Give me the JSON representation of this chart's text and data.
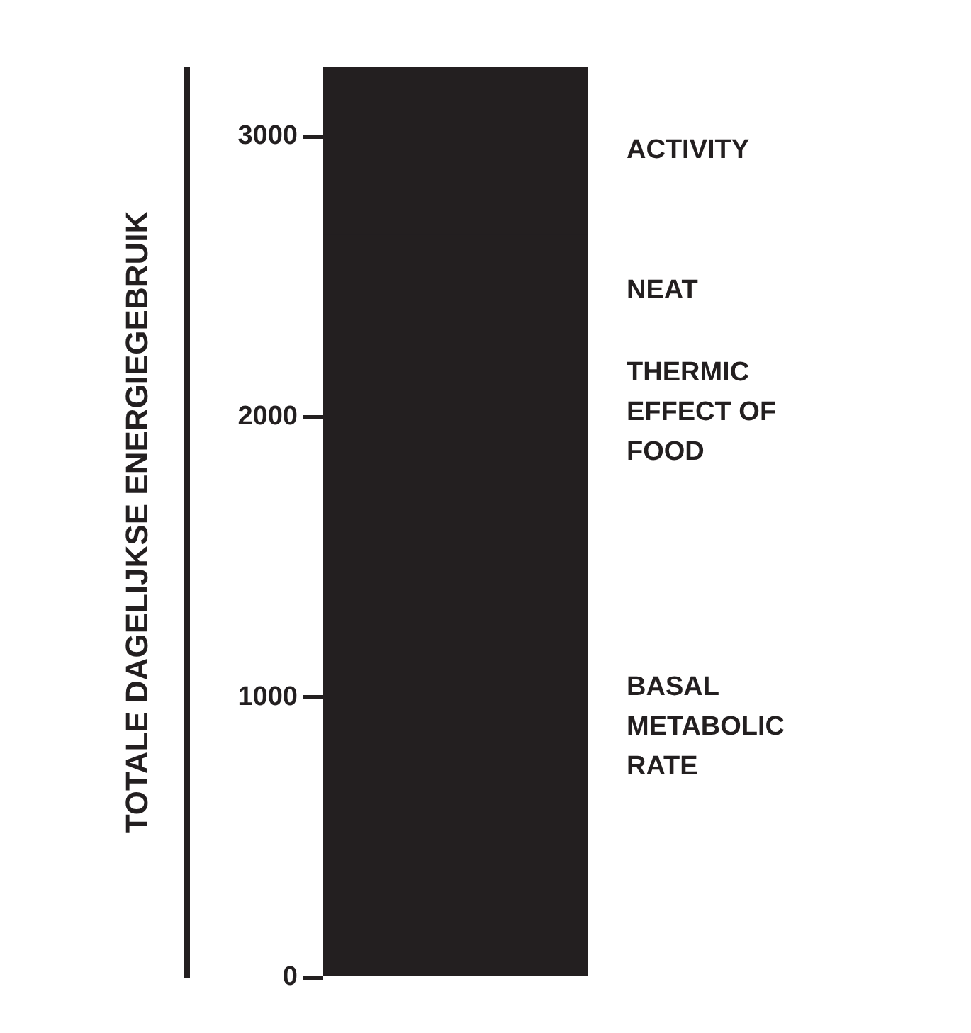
{
  "chart_data": {
    "type": "bar",
    "stacked": true,
    "ylabel": "TOTALE DAGELIJKSE ENERGIEGEBRUIK",
    "categories": [
      null
    ],
    "ylim": [
      0,
      3250
    ],
    "yticks": [
      0,
      1000,
      2000,
      3000
    ],
    "grid": false,
    "legend": false,
    "series": [
      {
        "name": "BASAL METABOLIC RATE",
        "color": "#231f20",
        "values": [
          1780
        ]
      },
      {
        "name": "THERMIC EFFECT OF FOOD",
        "color": "#231f20",
        "values": [
          470
        ]
      },
      {
        "name": "NEAT",
        "color": "#231f20",
        "values": [
          400
        ]
      },
      {
        "name": "ACTIVITY",
        "color": "#231f20",
        "values": [
          600
        ]
      }
    ]
  }
}
